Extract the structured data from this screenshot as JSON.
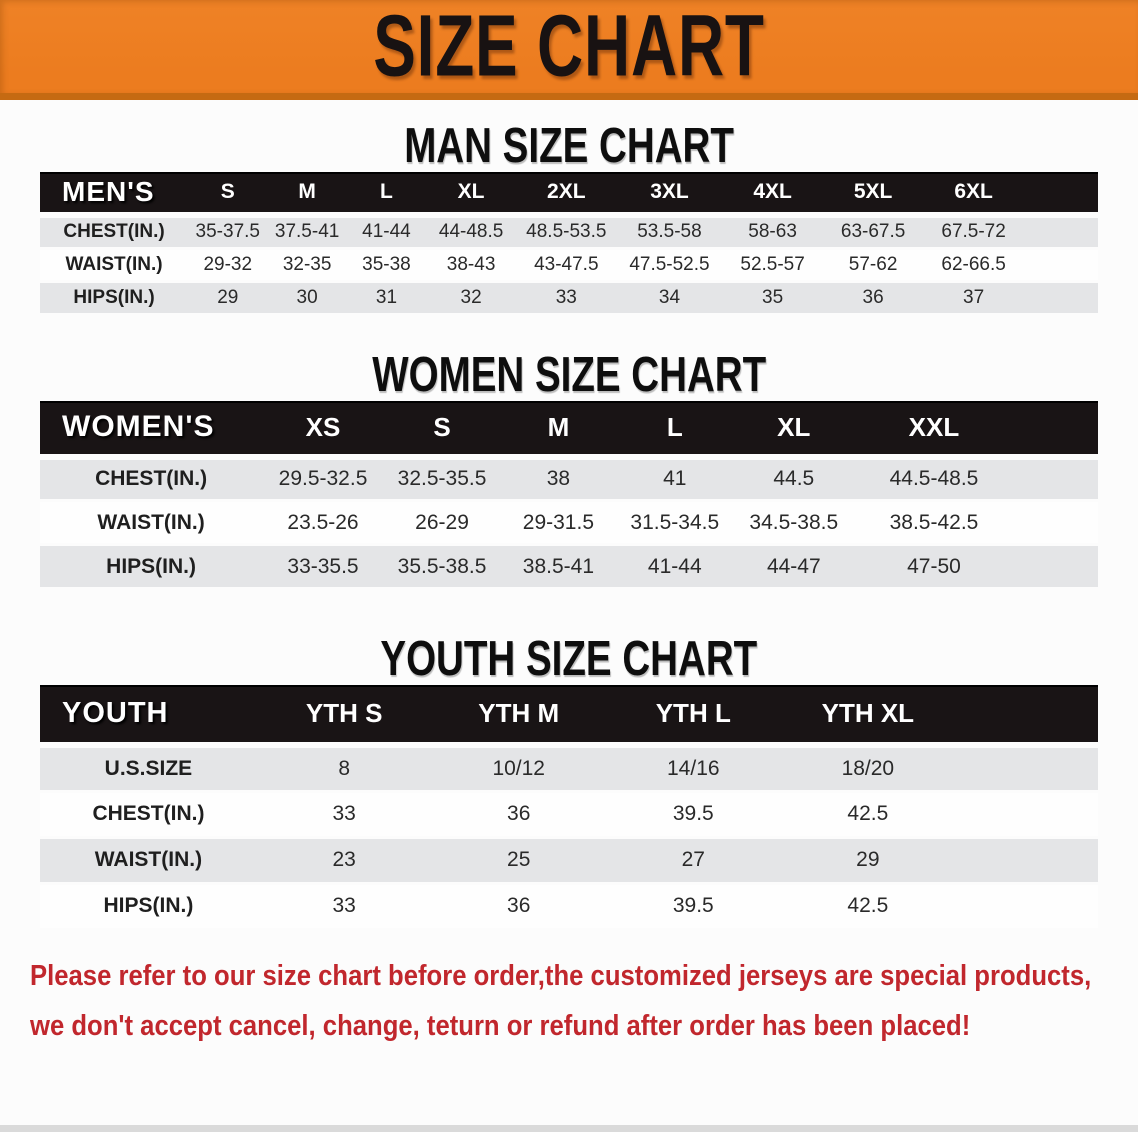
{
  "banner": {
    "title": "SIZE CHART"
  },
  "colors": {
    "banner_bg": "#EC7C1F",
    "banner_border": "#C56A12",
    "table_header_bg": "#191415",
    "row_stripe": "#E4E5E7",
    "notice_text": "#C1272D"
  },
  "sections": [
    {
      "heading": "MAN SIZE CHART",
      "header_label": "MEN'S",
      "columns": [
        "S",
        "M",
        "L",
        "XL",
        "2XL",
        "3XL",
        "4XL",
        "5XL",
        "6XL"
      ],
      "rows": [
        {
          "label": "CHEST(IN.)",
          "values": [
            "35-37.5",
            "37.5-41",
            "41-44",
            "44-48.5",
            "48.5-53.5",
            "53.5-58",
            "58-63",
            "63-67.5",
            "67.5-72"
          ]
        },
        {
          "label": "WAIST(IN.)",
          "values": [
            "29-32",
            "32-35",
            "35-38",
            "38-43",
            "43-47.5",
            "47.5-52.5",
            "52.5-57",
            "57-62",
            "62-66.5"
          ]
        },
        {
          "label": "HIPS(IN.)",
          "values": [
            "29",
            "30",
            "31",
            "32",
            "33",
            "34",
            "35",
            "36",
            "37"
          ]
        }
      ]
    },
    {
      "heading": "WOMEN SIZE CHART",
      "header_label": "WOMEN'S",
      "columns": [
        "XS",
        "S",
        "M",
        "L",
        "XL",
        "XXL"
      ],
      "rows": [
        {
          "label": "CHEST(IN.)",
          "values": [
            "29.5-32.5",
            "32.5-35.5",
            "38",
            "41",
            "44.5",
            "44.5-48.5"
          ]
        },
        {
          "label": "WAIST(IN.)",
          "values": [
            "23.5-26",
            "26-29",
            "29-31.5",
            "31.5-34.5",
            "34.5-38.5",
            "38.5-42.5"
          ]
        },
        {
          "label": "HIPS(IN.)",
          "values": [
            "33-35.5",
            "35.5-38.5",
            "38.5-41",
            "41-44",
            "44-47",
            "47-50"
          ]
        }
      ]
    },
    {
      "heading": "YOUTH SIZE CHART",
      "header_label": "YOUTH",
      "columns": [
        "YTH S",
        "YTH M",
        "YTH L",
        "YTH XL"
      ],
      "rows": [
        {
          "label": "U.S.SIZE",
          "values": [
            "8",
            "10/12",
            "14/16",
            "18/20"
          ]
        },
        {
          "label": "CHEST(IN.)",
          "values": [
            "33",
            "36",
            "39.5",
            "42.5"
          ]
        },
        {
          "label": "WAIST(IN.)",
          "values": [
            "23",
            "25",
            "27",
            "29"
          ]
        },
        {
          "label": "HIPS(IN.)",
          "values": [
            "33",
            "36",
            "39.5",
            "42.5"
          ]
        }
      ]
    }
  ],
  "notice": {
    "line1": "Please refer to our size chart before order,the customized jerseys are special products,",
    "line2": "we don't accept cancel, change, teturn or refund after order has been placed!"
  }
}
